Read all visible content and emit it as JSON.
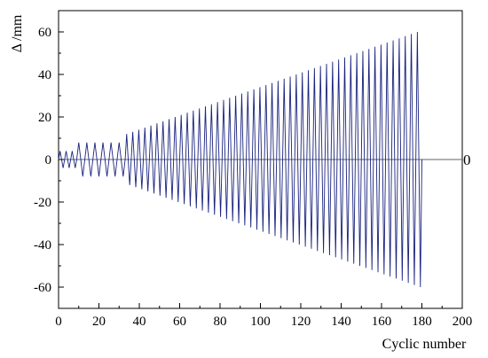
{
  "chart_data": {
    "type": "line",
    "xlabel": "Cyclic number",
    "ylabel": "Δ /mm",
    "xlim": [
      0,
      200
    ],
    "ylim": [
      -70,
      70
    ],
    "xticks": [
      "0",
      "20",
      "40",
      "60",
      "80",
      "100",
      "120",
      "140",
      "160",
      "180",
      "200"
    ],
    "yticks": [
      "-60",
      "-40",
      "-20",
      "0",
      "20",
      "40",
      "60"
    ],
    "zero_line_label": "0",
    "grid": false,
    "series": [
      {
        "color": "#1a237e",
        "segments": [
          {
            "from_cycle": 0,
            "to_cycle": 9,
            "amplitude": 4,
            "cycles": 3
          },
          {
            "from_cycle": 9,
            "to_cycle": 33,
            "amplitude": 8,
            "cycles": 6
          },
          {
            "from_cycle": 33,
            "to_cycle": 180,
            "amplitude_start": 12,
            "amplitude_end": 60,
            "cycles": 49
          }
        ]
      }
    ],
    "zero_line_range": [
      0,
      200
    ]
  }
}
